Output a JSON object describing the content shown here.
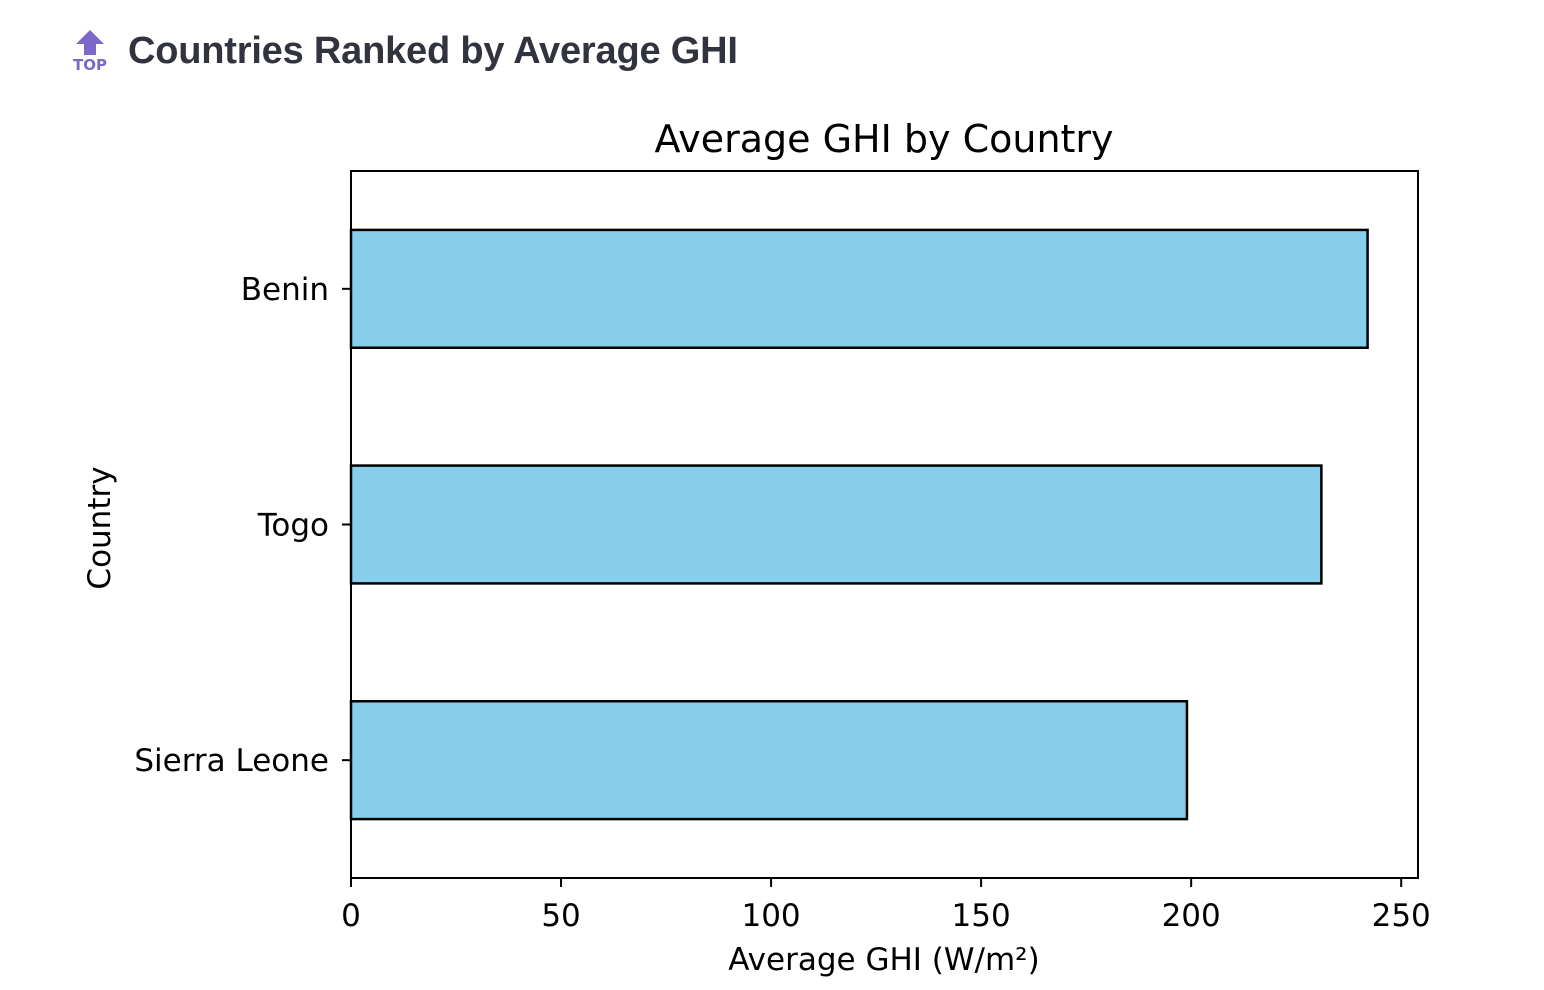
{
  "page": {
    "title": "Countries Ranked by Average GHI",
    "icon": "top-arrow-icon",
    "icon_label": "TOP"
  },
  "colors": {
    "bar_fill": "#87CEEB",
    "bar_edge": "#000000",
    "icon": "#7b68c8",
    "title_text": "#31333f"
  },
  "chart_data": {
    "type": "bar",
    "orientation": "horizontal",
    "title": "Average GHI by Country",
    "xlabel": "Average GHI (W/m²)",
    "ylabel": "Country",
    "categories": [
      "Benin",
      "Togo",
      "Sierra Leone"
    ],
    "values": [
      242,
      231,
      199
    ],
    "xlim": [
      0,
      254
    ],
    "xticks": [
      0,
      50,
      100,
      150,
      200,
      250
    ],
    "grid": false,
    "legend": "none"
  }
}
